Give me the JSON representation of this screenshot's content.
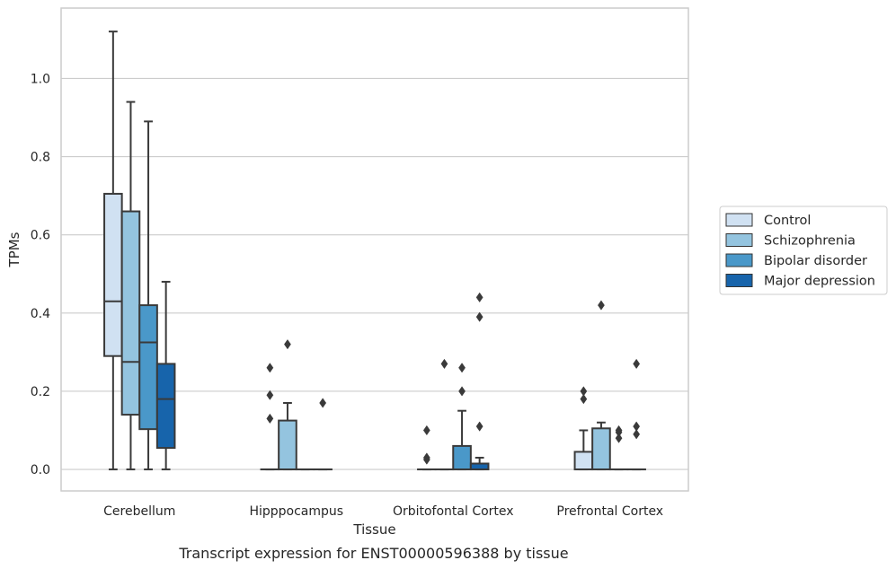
{
  "chart_data": {
    "type": "box",
    "xlabel": "Tissue",
    "ylabel": "TPMs",
    "caption": "Transcript expression for ENST00000596388 by tissue",
    "ylim": [
      -0.055,
      1.18
    ],
    "yticks": [
      "0.0",
      "0.2",
      "0.4",
      "0.6",
      "0.8",
      "1.0"
    ],
    "ytick_values": [
      0.0,
      0.2,
      0.4,
      0.6,
      0.8,
      1.0
    ],
    "grid": "horizontal",
    "legend_position": "right-outside",
    "categories": [
      "Cerebellum",
      "Hipppocampus",
      "Orbitofontal Cortex",
      "Prefrontal Cortex"
    ],
    "series": [
      {
        "name": "Control",
        "color": "#d0e1f2",
        "boxes": [
          {
            "whisker_low": 0.0,
            "q1": 0.29,
            "median": 0.43,
            "q3": 0.705,
            "whisker_high": 1.12,
            "outliers": []
          },
          {
            "whisker_low": 0.0,
            "q1": 0.0,
            "median": 0.0,
            "q3": 0.0,
            "whisker_high": 0.0,
            "outliers": [
              0.13,
              0.19,
              0.26
            ]
          },
          {
            "whisker_low": 0.0,
            "q1": 0.0,
            "median": 0.0,
            "q3": 0.0,
            "whisker_high": 0.0,
            "outliers": [
              0.025,
              0.03,
              0.1
            ]
          },
          {
            "whisker_low": 0.0,
            "q1": 0.0,
            "median": 0.0,
            "q3": 0.045,
            "whisker_high": 0.1,
            "outliers": [
              0.18,
              0.2
            ]
          }
        ]
      },
      {
        "name": "Schizophrenia",
        "color": "#94c4df",
        "boxes": [
          {
            "whisker_low": 0.0,
            "q1": 0.14,
            "median": 0.275,
            "q3": 0.66,
            "whisker_high": 0.94,
            "outliers": []
          },
          {
            "whisker_low": 0.0,
            "q1": 0.0,
            "median": 0.0,
            "q3": 0.125,
            "whisker_high": 0.17,
            "outliers": [
              0.32
            ]
          },
          {
            "whisker_low": 0.0,
            "q1": 0.0,
            "median": 0.0,
            "q3": 0.0,
            "whisker_high": 0.0,
            "outliers": [
              0.27
            ]
          },
          {
            "whisker_low": 0.0,
            "q1": 0.0,
            "median": 0.0,
            "q3": 0.105,
            "whisker_high": 0.12,
            "outliers": [
              0.42
            ]
          }
        ]
      },
      {
        "name": "Bipolar disorder",
        "color": "#4a98c9",
        "boxes": [
          {
            "whisker_low": 0.0,
            "q1": 0.103,
            "median": 0.325,
            "q3": 0.42,
            "whisker_high": 0.89,
            "outliers": []
          },
          {
            "whisker_low": 0.0,
            "q1": 0.0,
            "median": 0.0,
            "q3": 0.0,
            "whisker_high": 0.0,
            "outliers": []
          },
          {
            "whisker_low": 0.0,
            "q1": 0.0,
            "median": 0.0,
            "q3": 0.06,
            "whisker_high": 0.15,
            "outliers": [
              0.2,
              0.26
            ]
          },
          {
            "whisker_low": 0.0,
            "q1": 0.0,
            "median": 0.0,
            "q3": 0.0,
            "whisker_high": 0.0,
            "outliers": [
              0.08,
              0.095,
              0.1
            ]
          }
        ]
      },
      {
        "name": "Major depression",
        "color": "#1764ab",
        "boxes": [
          {
            "whisker_low": 0.0,
            "q1": 0.055,
            "median": 0.18,
            "q3": 0.27,
            "whisker_high": 0.48,
            "outliers": []
          },
          {
            "whisker_low": 0.0,
            "q1": 0.0,
            "median": 0.0,
            "q3": 0.0,
            "whisker_high": 0.0,
            "outliers": [
              0.17
            ]
          },
          {
            "whisker_low": 0.0,
            "q1": 0.0,
            "median": 0.0,
            "q3": 0.015,
            "whisker_high": 0.03,
            "outliers": [
              0.11,
              0.39,
              0.44
            ]
          },
          {
            "whisker_low": 0.0,
            "q1": 0.0,
            "median": 0.0,
            "q3": 0.0,
            "whisker_high": 0.0,
            "outliers": [
              0.09,
              0.11,
              0.27
            ]
          }
        ]
      }
    ]
  }
}
